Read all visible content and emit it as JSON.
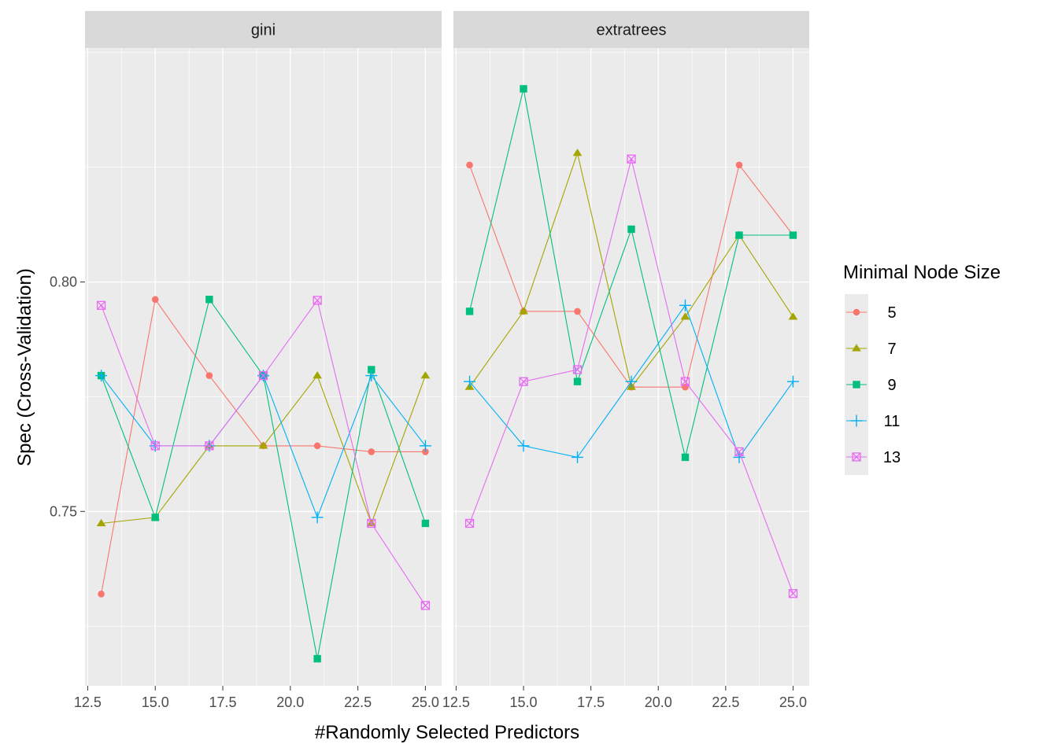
{
  "chart_data": {
    "type": "line",
    "xlabel": "#Randomly Selected Predictors",
    "ylabel": "Spec (Cross-Validation)",
    "xlim": [
      12.4,
      25.6
    ],
    "ylim": [
      0.712,
      0.851
    ],
    "x_ticks": [
      12.5,
      15.0,
      17.5,
      20.0,
      22.5,
      25.0
    ],
    "x_tick_labels": [
      "12.5",
      "15.0",
      "17.5",
      "20.0",
      "22.5",
      "25.0"
    ],
    "y_ticks": [
      0.75,
      0.8
    ],
    "y_tick_labels": [
      "0.75",
      "0.80"
    ],
    "grid": true,
    "legend": {
      "title": "Minimal Node Size",
      "position": "right",
      "entries": [
        {
          "label": "5",
          "color": "#F8766D",
          "shape": "circle"
        },
        {
          "label": "7",
          "color": "#A3A500",
          "shape": "triangle"
        },
        {
          "label": "9",
          "color": "#00BF7D",
          "shape": "square"
        },
        {
          "label": "11",
          "color": "#00B0F6",
          "shape": "plus"
        },
        {
          "label": "13",
          "color": "#E76BF3",
          "shape": "square-x"
        }
      ]
    },
    "panels": [
      {
        "label": "gini",
        "x": [
          13,
          15,
          17,
          19,
          21,
          23,
          25
        ],
        "series": [
          {
            "name": "5",
            "values": [
              0.732,
              0.7962,
              0.7796,
              0.7643,
              0.7643,
              0.763,
              0.763
            ]
          },
          {
            "name": "7",
            "values": [
              0.7474,
              0.7487,
              0.7643,
              0.7643,
              0.7796,
              0.7474,
              0.7796
            ]
          },
          {
            "name": "9",
            "values": [
              0.7796,
              0.7487,
              0.7962,
              0.7796,
              0.7179,
              0.7809,
              0.7474
            ]
          },
          {
            "name": "11",
            "values": [
              0.7796,
              0.7643,
              0.7643,
              0.7796,
              0.7487,
              0.7796,
              0.7643
            ]
          },
          {
            "name": "13",
            "values": [
              0.7949,
              0.7643,
              0.7643,
              0.7796,
              0.796,
              0.7474,
              0.7295
            ]
          }
        ]
      },
      {
        "label": "extratrees",
        "x": [
          13,
          15,
          17,
          19,
          21,
          23,
          25
        ],
        "series": [
          {
            "name": "5",
            "values": [
              0.8255,
              0.7936,
              0.7936,
              0.7771,
              0.7771,
              0.8255,
              0.8102
            ]
          },
          {
            "name": "7",
            "values": [
              0.7771,
              0.7936,
              0.8281,
              0.7771,
              0.7924,
              0.8102,
              0.7924
            ]
          },
          {
            "name": "9",
            "values": [
              0.7936,
              0.8421,
              0.7783,
              0.8115,
              0.7618,
              0.8102,
              0.8102
            ]
          },
          {
            "name": "11",
            "values": [
              0.7783,
              0.7643,
              0.7618,
              0.7783,
              0.7949,
              0.7618,
              0.7783
            ]
          },
          {
            "name": "13",
            "values": [
              0.7474,
              0.7783,
              0.7809,
              0.8268,
              0.7783,
              0.763,
              0.7321
            ]
          }
        ]
      }
    ]
  }
}
